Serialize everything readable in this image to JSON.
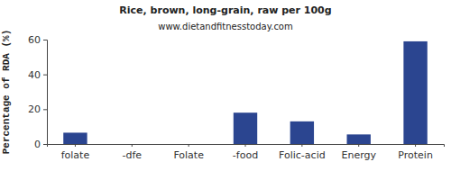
{
  "chart_data": {
    "type": "bar",
    "title": "Rice, brown, long-grain, raw per 100g",
    "subtitle": "www.dietandfitnesstoday.com",
    "y_label": "Percentage of RDA (%)",
    "categories": [
      "folate",
      "-dfe",
      "Folate",
      "-food",
      "Folic-acid",
      "Energy",
      "Protein"
    ],
    "values": [
      6.5,
      0,
      0,
      18,
      13,
      5.5,
      59
    ],
    "color": "#2b4590",
    "ylim": [
      0,
      60
    ],
    "yticks": [
      0,
      20,
      40,
      60
    ],
    "grid": false
  }
}
